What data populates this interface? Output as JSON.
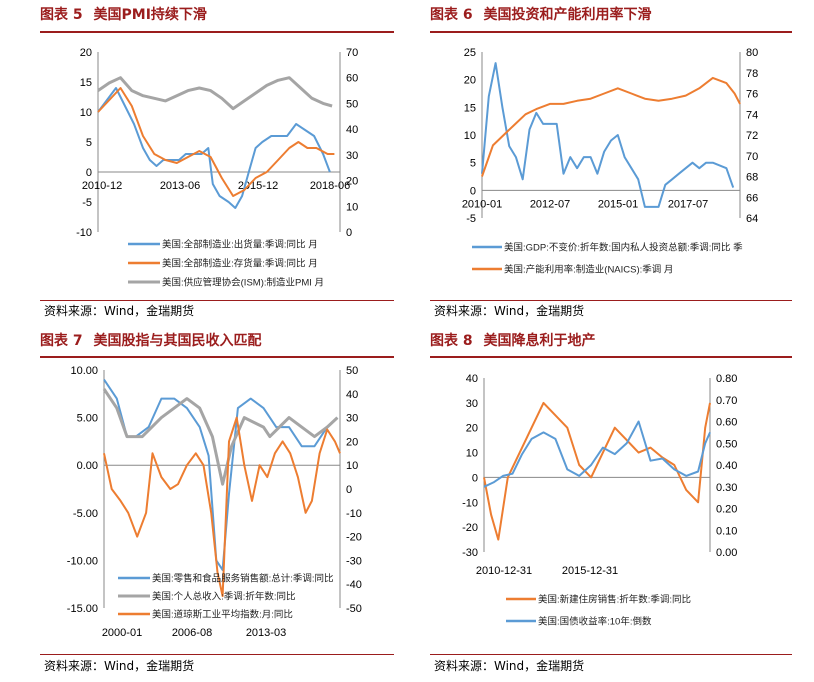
{
  "source_text": "资料来源：Wind，金瑞期货",
  "chart_data": [
    {
      "fig_prefix": "图表",
      "fig_no": "5",
      "title": "美国PMI持续下滑",
      "type": "line",
      "x_tick_labels": [
        "2010-12",
        "2013-06",
        "2015-12",
        "2018-06"
      ],
      "y_left_ticks": [
        20,
        15,
        10,
        5,
        0,
        -5,
        -10
      ],
      "y_right_ticks": [
        70,
        60,
        50,
        40,
        30,
        20,
        10,
        0
      ],
      "ylim_left": [
        -10,
        20
      ],
      "ylim_right": [
        0,
        70
      ],
      "x_range": [
        2010.0,
        2020.75
      ],
      "grid": false,
      "legend_position": "bottom",
      "series": [
        {
          "name": "美国:全部制造业:出货量:季调:同比 月",
          "color": "#5b9bd5",
          "axis": "left",
          "x": [
            2010.0,
            2010.4,
            2010.8,
            2011.2,
            2011.6,
            2012.0,
            2012.3,
            2012.6,
            2012.9,
            2013.2,
            2013.6,
            2013.9,
            2014.2,
            2014.6,
            2014.9,
            2015.1,
            2015.4,
            2015.8,
            2016.1,
            2016.4,
            2016.7,
            2017.0,
            2017.3,
            2017.7,
            2018.0,
            2018.4,
            2018.8,
            2019.2,
            2019.6,
            2020.0,
            2020.3
          ],
          "values": [
            10,
            12,
            14,
            11,
            8,
            4,
            2,
            1,
            2,
            2,
            2,
            3,
            3,
            3,
            4,
            -2,
            -4,
            -5,
            -6,
            -4,
            0,
            4,
            5,
            6,
            6,
            6,
            8,
            7,
            6,
            3,
            0
          ]
        },
        {
          "name": "美国:全部制造业:存货量:季调:同比 月",
          "color": "#ed7d31",
          "axis": "left",
          "x": [
            2010.0,
            2010.5,
            2011.0,
            2011.5,
            2012.0,
            2012.5,
            2013.0,
            2013.5,
            2014.0,
            2014.5,
            2015.0,
            2015.5,
            2016.0,
            2016.5,
            2017.0,
            2017.5,
            2018.0,
            2018.5,
            2018.9,
            2019.3,
            2019.7,
            2020.2,
            2020.5
          ],
          "values": [
            10,
            12,
            14,
            11,
            6,
            3,
            2,
            1.5,
            2.5,
            3.5,
            2.5,
            -1,
            -4,
            -3,
            -1,
            0,
            2,
            4,
            5,
            4,
            4,
            3,
            3
          ]
        },
        {
          "name": "美国:供应管理协会(ISM):制造业PMI 月",
          "color": "#a5a5a5",
          "axis": "right",
          "x": [
            2010.0,
            2010.5,
            2011.0,
            2011.5,
            2012.0,
            2012.5,
            2013.0,
            2013.5,
            2014.0,
            2014.5,
            2015.0,
            2015.5,
            2016.0,
            2016.5,
            2017.0,
            2017.5,
            2018.0,
            2018.5,
            2019.0,
            2019.5,
            2020.0,
            2020.4
          ],
          "values": [
            55,
            58,
            60,
            55,
            53,
            52,
            51,
            53,
            55,
            56,
            55,
            52,
            48,
            51,
            54,
            57,
            59,
            60,
            56,
            52,
            50,
            49
          ]
        }
      ]
    },
    {
      "fig_prefix": "图表",
      "fig_no": "6",
      "title": "美国投资和产能利用率下滑",
      "type": "line",
      "x_tick_labels": [
        "2010-01",
        "2012-07",
        "2015-01",
        "2017-07"
      ],
      "y_left_ticks": [
        25,
        20,
        15,
        10,
        5,
        0,
        -5
      ],
      "y_right_ticks": [
        80,
        78,
        76,
        74,
        72,
        70,
        68,
        66,
        64
      ],
      "ylim_left": [
        -5,
        25
      ],
      "ylim_right": [
        64,
        80
      ],
      "x_range": [
        2010.0,
        2019.5
      ],
      "grid": false,
      "legend_position": "bottom",
      "series": [
        {
          "name": "美国:GDP:不变价:折年数:国内私人投资总额:季调:同比 季",
          "color": "#5b9bd5",
          "axis": "left",
          "x": [
            2010.0,
            2010.25,
            2010.5,
            2010.75,
            2011.0,
            2011.25,
            2011.5,
            2011.75,
            2012.0,
            2012.25,
            2012.5,
            2012.75,
            2013.0,
            2013.25,
            2013.5,
            2013.75,
            2014.0,
            2014.25,
            2014.5,
            2014.75,
            2015.0,
            2015.25,
            2015.5,
            2015.75,
            2016.0,
            2016.25,
            2016.5,
            2016.75,
            2017.0,
            2017.25,
            2017.5,
            2017.75,
            2018.0,
            2018.25,
            2018.5,
            2018.75,
            2019.0,
            2019.25
          ],
          "values": [
            3,
            17,
            23,
            15,
            8,
            6,
            2,
            11,
            14,
            12,
            12,
            12,
            3,
            6,
            4,
            6,
            6,
            3,
            7,
            9,
            10,
            6,
            4,
            2,
            -3,
            -3,
            -3,
            1,
            2,
            3,
            4,
            5,
            4,
            5,
            5,
            4.5,
            4,
            0.5
          ]
        },
        {
          "name": "美国:产能利用率:制造业(NAICS):季调 月",
          "color": "#ed7d31",
          "axis": "right",
          "x": [
            2010.0,
            2010.4,
            2010.8,
            2011.2,
            2011.6,
            2012.0,
            2012.5,
            2013.0,
            2013.5,
            2014.0,
            2014.5,
            2015.0,
            2015.5,
            2016.0,
            2016.5,
            2017.0,
            2017.5,
            2018.0,
            2018.5,
            2019.0,
            2019.3,
            2019.5
          ],
          "values": [
            68,
            71,
            72,
            73,
            74,
            74.5,
            75,
            75,
            75.3,
            75.5,
            76,
            76.5,
            76,
            75.5,
            75.3,
            75.5,
            75.8,
            76.5,
            77.5,
            77,
            76,
            75
          ]
        }
      ]
    },
    {
      "fig_prefix": "图表",
      "fig_no": "7",
      "title": "美国股指与其国民收入匹配",
      "type": "line",
      "x_tick_labels": [
        "2000-01",
        "2006-08",
        "2013-03"
      ],
      "y_left_ticks": [
        "10.00",
        "5.00",
        "0.00",
        "-5.00",
        "-10.00",
        "-15.00"
      ],
      "y_right_ticks": [
        50,
        40,
        30,
        20,
        10,
        0,
        -10,
        -20,
        -30,
        -40,
        -50
      ],
      "ylim_left": [
        -15,
        10
      ],
      "ylim_right": [
        -50,
        50
      ],
      "x_range": [
        2000.0,
        2018.5
      ],
      "grid": false,
      "legend_position": "bottom-left",
      "series": [
        {
          "name": "美国:零售和食品服务销售额:总计:季调:同比",
          "color": "#5b9bd5",
          "axis": "left",
          "x": [
            2000.0,
            2001.0,
            2001.8,
            2002.5,
            2003.5,
            2004.5,
            2005.5,
            2006.5,
            2007.5,
            2008.2,
            2008.8,
            2009.3,
            2009.8,
            2010.5,
            2011.5,
            2012.5,
            2013.5,
            2014.5,
            2015.5,
            2016.5,
            2017.5,
            2018.3
          ],
          "values": [
            9,
            7,
            3,
            3,
            4,
            7,
            7,
            6,
            4,
            1,
            -10,
            -11,
            -3,
            6,
            7,
            6,
            4,
            4,
            2,
            2,
            4,
            5
          ]
        },
        {
          "name": "美国:个人总收入:季调:折年数:同比",
          "color": "#a5a5a5",
          "axis": "left",
          "x": [
            2000.0,
            2001.0,
            2001.8,
            2003.0,
            2004.5,
            2005.5,
            2006.5,
            2007.5,
            2008.5,
            2009.3,
            2010.0,
            2011.0,
            2012.5,
            2013.0,
            2014.5,
            2015.5,
            2016.5,
            2017.5,
            2018.3
          ],
          "values": [
            8,
            6,
            3,
            3,
            5,
            6,
            7,
            6,
            3,
            -2,
            2,
            5,
            4,
            3,
            5,
            4,
            3,
            4,
            5
          ]
        },
        {
          "name": "美国:道琼斯工业平均指数:月:同比",
          "color": "#ed7d31",
          "axis": "right",
          "x": [
            2000.0,
            2000.6,
            2001.3,
            2001.9,
            2002.6,
            2003.3,
            2003.8,
            2004.5,
            2005.2,
            2005.8,
            2006.5,
            2007.2,
            2007.8,
            2008.4,
            2008.9,
            2009.3,
            2009.8,
            2010.4,
            2011.0,
            2011.6,
            2012.2,
            2012.8,
            2013.4,
            2014.0,
            2014.6,
            2015.2,
            2015.8,
            2016.3,
            2016.9,
            2017.5,
            2018.1,
            2018.5
          ],
          "values": [
            15,
            0,
            -5,
            -10,
            -20,
            -10,
            15,
            5,
            0,
            2,
            10,
            15,
            10,
            -10,
            -35,
            -45,
            20,
            30,
            10,
            -5,
            10,
            5,
            15,
            20,
            15,
            5,
            -10,
            -5,
            15,
            25,
            20,
            15
          ]
        }
      ]
    },
    {
      "fig_prefix": "图表",
      "fig_no": "8",
      "title": "美国降息利于地产",
      "type": "line",
      "x_tick_labels": [
        "2010-12-31",
        "2015-12-31"
      ],
      "y_left_ticks": [
        40,
        30,
        20,
        10,
        0,
        -10,
        -20,
        -30
      ],
      "y_right_ticks": [
        "0.80",
        "0.70",
        "0.60",
        "0.50",
        "0.40",
        "0.30",
        "0.20",
        "0.10",
        "0.00"
      ],
      "ylim_left": [
        -30,
        40
      ],
      "ylim_right": [
        0,
        0.8
      ],
      "x_range": [
        2010.0,
        2019.5
      ],
      "grid": false,
      "legend_position": "bottom",
      "series": [
        {
          "name": "美国:新建住房销售:折年数:季调:同比",
          "color": "#ed7d31",
          "axis": "left",
          "x": [
            2010.0,
            2010.3,
            2010.6,
            2011.0,
            2011.5,
            2012.0,
            2012.5,
            2013.0,
            2013.5,
            2014.0,
            2014.5,
            2015.0,
            2015.5,
            2016.0,
            2016.5,
            2017.0,
            2017.5,
            2018.0,
            2018.5,
            2019.0,
            2019.3,
            2019.5
          ],
          "values": [
            0,
            -15,
            -25,
            0,
            10,
            20,
            30,
            25,
            20,
            5,
            0,
            10,
            20,
            15,
            10,
            12,
            8,
            5,
            -5,
            -10,
            20,
            30
          ]
        },
        {
          "name": "美国:国债收益率:10年:倒数",
          "color": "#5b9bd5",
          "axis": "right",
          "x": [
            2010.0,
            2010.4,
            2010.8,
            2011.2,
            2011.6,
            2012.0,
            2012.5,
            2013.0,
            2013.5,
            2014.0,
            2014.5,
            2015.0,
            2015.5,
            2016.0,
            2016.5,
            2017.0,
            2017.5,
            2018.0,
            2018.5,
            2019.0,
            2019.3,
            2019.5
          ],
          "values": [
            0.3,
            0.32,
            0.35,
            0.36,
            0.45,
            0.52,
            0.55,
            0.52,
            0.38,
            0.35,
            0.4,
            0.48,
            0.45,
            0.5,
            0.6,
            0.42,
            0.43,
            0.38,
            0.35,
            0.37,
            0.5,
            0.55
          ]
        }
      ]
    }
  ]
}
